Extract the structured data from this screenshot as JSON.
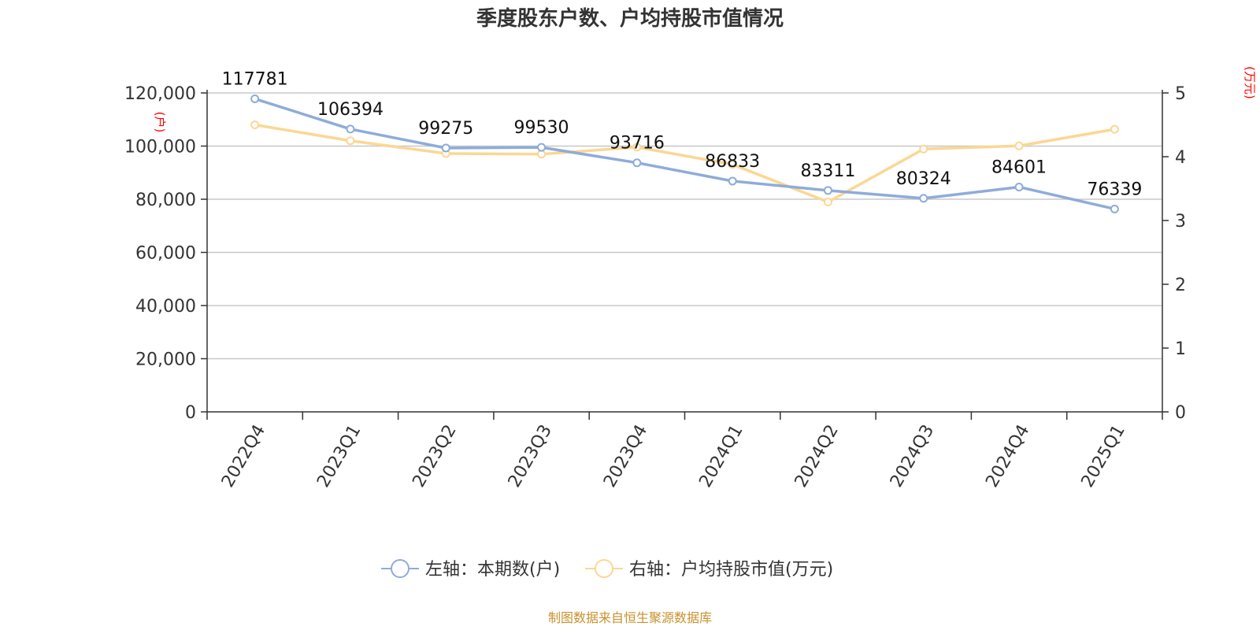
{
  "chart_data": {
    "type": "line",
    "title": "季度股东户数、户均持股市值情况",
    "categories": [
      "2022Q4",
      "2023Q1",
      "2023Q2",
      "2023Q3",
      "2023Q4",
      "2024Q1",
      "2024Q2",
      "2024Q3",
      "2024Q4",
      "2025Q1"
    ],
    "y_left": {
      "unit": "(户)",
      "range": [
        0,
        120000
      ],
      "ticks": [
        0,
        20000,
        40000,
        60000,
        80000,
        100000,
        120000
      ],
      "tick_labels": [
        "0",
        "20,000",
        "40,000",
        "60,000",
        "80,000",
        "100,000",
        "120,000"
      ]
    },
    "y_right": {
      "unit": "(万元)",
      "range": [
        0,
        5
      ],
      "ticks": [
        0,
        1,
        2,
        3,
        4,
        5
      ],
      "tick_labels": [
        "0",
        "1",
        "2",
        "3",
        "4",
        "5"
      ]
    },
    "series": [
      {
        "name": "左轴：本期数(户)",
        "axis": "left",
        "color": "#8eacd9",
        "values": [
          117781,
          106394,
          99275,
          99530,
          93716,
          86833,
          83311,
          80324,
          84601,
          76339
        ],
        "labels": [
          "117781",
          "106394",
          "99275",
          "99530",
          "93716",
          "86833",
          "83311",
          "80324",
          "84601",
          "76339"
        ]
      },
      {
        "name": "右轴：户均持股市值(万元)",
        "axis": "right",
        "color": "#fbd793",
        "values": [
          4.5,
          4.25,
          4.05,
          4.04,
          4.15,
          3.88,
          3.29,
          4.12,
          4.17,
          4.43
        ]
      }
    ],
    "grid": true,
    "legend_position": "bottom-center"
  },
  "source": "制图数据来自恒生聚源数据库"
}
